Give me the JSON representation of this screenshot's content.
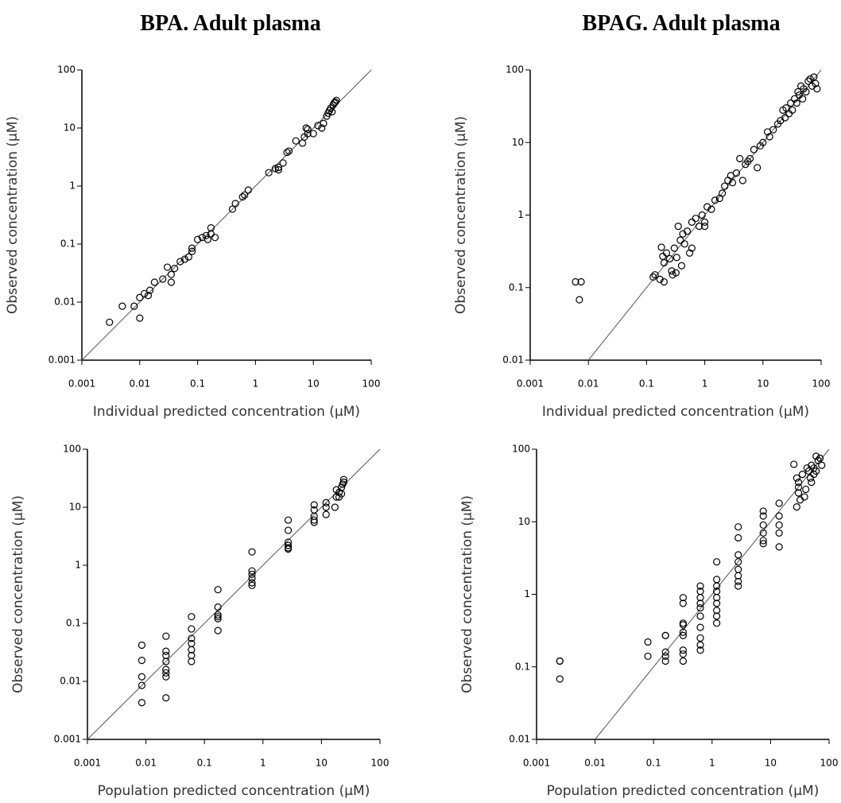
{
  "chart_data": [
    {
      "type": "scatter",
      "title": "BPA. Adult plasma",
      "x_label": "Individual predicted concentration (µM)",
      "y_label": "Observed concentration (µM)",
      "log_x": true,
      "log_y": true,
      "identity_line": true,
      "color": "#000000",
      "xlim": [
        0.001,
        100
      ],
      "ylim": [
        0.001,
        100
      ],
      "xticks": [
        0.001,
        0.01,
        0.1,
        1,
        10,
        100
      ],
      "yticks": [
        0.001,
        0.01,
        0.1,
        1,
        10,
        100
      ],
      "x": [
        0.003,
        0.005,
        0.008,
        0.01,
        0.01,
        0.012,
        0.014,
        0.015,
        0.018,
        0.025,
        0.03,
        0.035,
        0.035,
        0.04,
        0.05,
        0.06,
        0.07,
        0.08,
        0.08,
        0.1,
        0.12,
        0.14,
        0.15,
        0.17,
        0.17,
        0.2,
        0.4,
        0.45,
        0.6,
        0.65,
        0.75,
        1.7,
        2.2,
        2.5,
        2.5,
        3,
        3.5,
        3.8,
        5,
        6.5,
        7,
        8,
        8,
        10,
        12,
        14,
        15,
        17,
        18,
        19,
        20,
        21,
        22,
        23,
        25,
        24,
        7.5
      ],
      "values": [
        0.0045,
        0.0085,
        0.0085,
        0.0053,
        0.012,
        0.014,
        0.013,
        0.016,
        0.022,
        0.025,
        0.04,
        0.03,
        0.022,
        0.038,
        0.05,
        0.055,
        0.06,
        0.075,
        0.085,
        0.12,
        0.13,
        0.14,
        0.12,
        0.15,
        0.19,
        0.13,
        0.4,
        0.5,
        0.65,
        0.7,
        0.85,
        1.7,
        2,
        2.1,
        1.9,
        2.5,
        3.8,
        4,
        6,
        5.5,
        7,
        8,
        9.5,
        8,
        11,
        10,
        12,
        16,
        18,
        20,
        22,
        19,
        25,
        27,
        30,
        28,
        10
      ]
    },
    {
      "type": "scatter",
      "title": "BPAG. Adult plasma",
      "x_label": "Individual predicted concentration (µM)",
      "y_label": "Observed concentration (µM)",
      "log_x": true,
      "log_y": true,
      "identity_line": true,
      "color": "#000000",
      "xlim": [
        0.001,
        100
      ],
      "ylim": [
        0.01,
        100
      ],
      "xticks": [
        0.001,
        0.01,
        0.1,
        1,
        10,
        100
      ],
      "yticks": [
        0.01,
        0.1,
        1,
        10,
        100
      ],
      "x": [
        0.006,
        0.0075,
        0.007,
        0.13,
        0.14,
        0.17,
        0.18,
        0.19,
        0.2,
        0.2,
        0.22,
        0.25,
        0.27,
        0.28,
        0.3,
        0.32,
        0.33,
        0.35,
        0.38,
        0.4,
        0.42,
        0.45,
        0.5,
        0.55,
        0.6,
        0.6,
        0.7,
        0.8,
        0.9,
        1,
        1,
        1.1,
        1.3,
        1.5,
        1.8,
        2,
        2.2,
        2.5,
        2.8,
        3,
        3.5,
        4,
        4.5,
        5,
        5.5,
        6,
        7,
        8,
        9,
        10,
        12,
        13,
        15,
        18,
        20,
        22,
        24,
        25,
        28,
        30,
        32,
        35,
        38,
        40,
        42,
        45,
        48,
        50,
        55,
        60,
        65,
        70,
        75,
        80,
        85
      ],
      "values": [
        0.12,
        0.12,
        0.068,
        0.14,
        0.15,
        0.13,
        0.36,
        0.27,
        0.22,
        0.12,
        0.3,
        0.25,
        0.17,
        0.15,
        0.35,
        0.16,
        0.26,
        0.7,
        0.45,
        0.2,
        0.55,
        0.4,
        0.6,
        0.3,
        0.35,
        0.8,
        0.9,
        0.7,
        1,
        0.8,
        0.7,
        1.3,
        1.2,
        1.6,
        1.7,
        2,
        2.5,
        3,
        3.5,
        2.8,
        3.8,
        6,
        3,
        5,
        5.5,
        6,
        8,
        4.5,
        9,
        10,
        14,
        12,
        15,
        18,
        20,
        28,
        22,
        30,
        25,
        35,
        28,
        40,
        35,
        50,
        45,
        60,
        40,
        55,
        50,
        70,
        75,
        60,
        80,
        65,
        55
      ]
    },
    {
      "type": "scatter",
      "x_label": "Population predicted concentration (µM)",
      "y_label": "Observed concentration (µM)",
      "log_x": true,
      "log_y": true,
      "identity_line": true,
      "color": "#000000",
      "xlim": [
        0.001,
        100
      ],
      "ylim": [
        0.001,
        100
      ],
      "xticks": [
        0.001,
        0.01,
        0.1,
        1,
        10,
        100
      ],
      "yticks": [
        0.001,
        0.01,
        0.1,
        1,
        10,
        100
      ],
      "x": [
        0.0085,
        0.0085,
        0.0085,
        0.0085,
        0.0085,
        0.022,
        0.022,
        0.022,
        0.022,
        0.022,
        0.022,
        0.022,
        0.022,
        0.06,
        0.06,
        0.06,
        0.06,
        0.06,
        0.06,
        0.06,
        0.17,
        0.17,
        0.17,
        0.17,
        0.17,
        0.17,
        0.65,
        0.65,
        0.65,
        0.65,
        0.65,
        0.65,
        2.7,
        2.7,
        2.7,
        2.7,
        2.7,
        2.7,
        7.5,
        7.5,
        7.5,
        7.5,
        7.5,
        12,
        12,
        12,
        17,
        18,
        18,
        20,
        22,
        23,
        24,
        22,
        20,
        24
      ],
      "values": [
        0.042,
        0.023,
        0.012,
        0.0085,
        0.0043,
        0.06,
        0.033,
        0.028,
        0.022,
        0.016,
        0.014,
        0.012,
        0.0052,
        0.13,
        0.08,
        0.055,
        0.045,
        0.035,
        0.028,
        0.022,
        0.38,
        0.19,
        0.14,
        0.13,
        0.12,
        0.075,
        1.7,
        0.8,
        0.7,
        0.6,
        0.5,
        0.45,
        6,
        4,
        2.5,
        2.2,
        2,
        1.9,
        11,
        9,
        7,
        6,
        5.5,
        7.5,
        10,
        12,
        10,
        15,
        20,
        18,
        22,
        25,
        30,
        17,
        15,
        27
      ]
    },
    {
      "type": "scatter",
      "x_label": "Population predicted concentration (µM)",
      "y_label": "Observed concentration (µM)",
      "log_x": true,
      "log_y": true,
      "identity_line": true,
      "color": "#000000",
      "xlim": [
        0.001,
        100
      ],
      "ylim": [
        0.01,
        100
      ],
      "xticks": [
        0.001,
        0.01,
        0.1,
        1,
        10,
        100
      ],
      "yticks": [
        0.01,
        0.1,
        1,
        10,
        100
      ],
      "x": [
        0.0025,
        0.0025,
        0.0025,
        0.08,
        0.08,
        0.16,
        0.16,
        0.16,
        0.16,
        0.16,
        0.32,
        0.32,
        0.32,
        0.32,
        0.32,
        0.32,
        0.32,
        0.32,
        0.32,
        0.63,
        0.63,
        0.63,
        0.63,
        0.63,
        0.63,
        0.63,
        0.63,
        0.63,
        0.63,
        1.2,
        1.2,
        1.2,
        1.2,
        1.2,
        1.2,
        1.2,
        1.2,
        1.2,
        2.8,
        2.8,
        2.8,
        2.8,
        2.8,
        2.8,
        2.8,
        2.8,
        7.5,
        7.5,
        7.5,
        7.5,
        7.5,
        7.5,
        14,
        14,
        14,
        14,
        14,
        25,
        28,
        30,
        30,
        32,
        28,
        35,
        38,
        40,
        45,
        48,
        50,
        50,
        55,
        55,
        60,
        60,
        65,
        70,
        75,
        30,
        42
      ],
      "values": [
        0.12,
        0.12,
        0.068,
        0.22,
        0.14,
        0.27,
        0.27,
        0.16,
        0.14,
        0.12,
        0.9,
        0.75,
        0.4,
        0.38,
        0.3,
        0.27,
        0.17,
        0.15,
        0.12,
        1.3,
        1.1,
        0.9,
        0.75,
        0.65,
        0.5,
        0.35,
        0.25,
        0.2,
        0.17,
        2.8,
        1.6,
        1.3,
        1.1,
        0.9,
        0.75,
        0.6,
        0.5,
        0.4,
        8.5,
        6,
        3.5,
        2.8,
        2.2,
        1.8,
        1.5,
        1.3,
        14,
        12,
        9,
        7,
        5.5,
        5,
        18,
        12,
        9,
        7,
        4.5,
        62,
        40,
        30,
        25,
        20,
        16,
        45,
        22,
        28,
        50,
        40,
        60,
        35,
        55,
        45,
        80,
        50,
        70,
        75,
        60,
        35,
        55
      ]
    }
  ]
}
